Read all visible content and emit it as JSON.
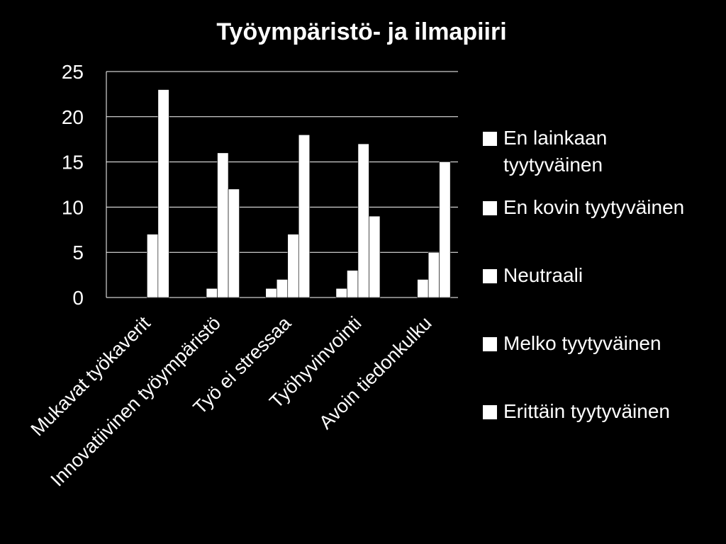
{
  "chart_data": {
    "type": "bar",
    "title": "Työympäristö- ja ilmapiiri",
    "xlabel": "",
    "ylabel": "",
    "ylim": [
      0,
      25
    ],
    "yticks": [
      0,
      5,
      10,
      15,
      20,
      25
    ],
    "grid": true,
    "legend_position": "right",
    "categories": [
      "Mukavat työkaverit",
      "Innovatiivinen työympäristö",
      "Työ ei stressaa",
      "Työhyvinvointi",
      "Avoin tiedonkulku"
    ],
    "series": [
      {
        "name": "En lainkaan tyytyväinen",
        "legend_lines": [
          "En lainkaan",
          "tyytyväinen"
        ],
        "values": [
          0,
          0,
          0,
          0,
          0
        ]
      },
      {
        "name": "En kovin tyytyväinen",
        "legend_lines": [
          "En kovin tyytyväinen"
        ],
        "values": [
          0,
          0,
          1,
          1,
          0
        ]
      },
      {
        "name": "Neutraali",
        "legend_lines": [
          "Neutraali"
        ],
        "values": [
          0,
          1,
          2,
          3,
          2
        ]
      },
      {
        "name": "Melko tyytyväinen",
        "legend_lines": [
          "Melko tyytyväinen"
        ],
        "values": [
          7,
          16,
          7,
          17,
          5
        ]
      },
      {
        "name": "Erittäin tyytyväinen",
        "legend_lines": [
          "Erittäin tyytyväinen"
        ],
        "values": [
          23,
          12,
          18,
          9,
          15
        ]
      }
    ],
    "colors": {
      "background": "#000000",
      "bars": "#ffffff",
      "gridline": "#ffffff",
      "text": "#ffffff"
    }
  }
}
